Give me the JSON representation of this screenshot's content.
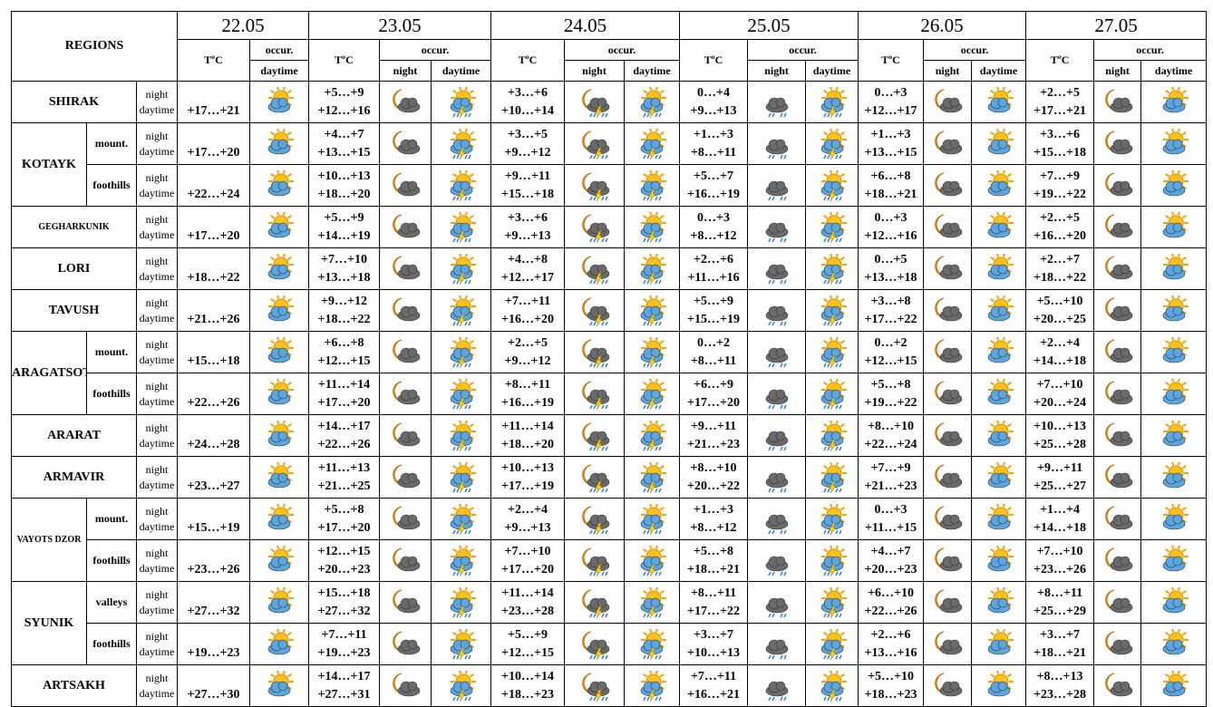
{
  "header": {
    "regions": "REGIONS",
    "dates": [
      "22.05",
      "23.05",
      "24.05",
      "25.05",
      "26.05",
      "27.05"
    ],
    "temp": "TºC",
    "occur": "occur.",
    "night": "night",
    "daytime": "daytime"
  },
  "regions": [
    {
      "name": "SHIRAK",
      "parts": [
        {
          "first": "+17…+21",
          "days": [
            [
              "+5…+9",
              "+12…+16"
            ],
            [
              "+3…+6",
              "+10…+14"
            ],
            [
              "0…+4",
              "+9…+13"
            ],
            [
              "0…+3",
              "+12…+17"
            ],
            [
              "+2…+5",
              "+17…+21"
            ]
          ]
        }
      ]
    },
    {
      "name": "KOTAYK",
      "parts": [
        {
          "name": "mount.",
          "first": "+17…+20",
          "days": [
            [
              "+4…+7",
              "+13…+15"
            ],
            [
              "+3…+5",
              "+9…+12"
            ],
            [
              "+1…+3",
              "+8…+11"
            ],
            [
              "+1…+3",
              "+13…+15"
            ],
            [
              "+3…+6",
              "+15…+18"
            ]
          ]
        },
        {
          "name": "foothills",
          "first": "+22…+24",
          "days": [
            [
              "+10…+13",
              "+18…+20"
            ],
            [
              "+9…+11",
              "+15…+18"
            ],
            [
              "+5…+7",
              "+16…+19"
            ],
            [
              "+6…+8",
              "+18…+21"
            ],
            [
              "+7…+9",
              "+19…+22"
            ]
          ]
        }
      ]
    },
    {
      "name": "GEGHARKUNIK",
      "parts": [
        {
          "first": "+17…+20",
          "days": [
            [
              "+5…+9",
              "+14…+19"
            ],
            [
              "+3…+6",
              "+9…+13"
            ],
            [
              "0…+3",
              "+8…+12"
            ],
            [
              "0…+3",
              "+12…+16"
            ],
            [
              "+2…+5",
              "+16…+20"
            ]
          ]
        }
      ]
    },
    {
      "name": "LORI",
      "parts": [
        {
          "first": "+18…+22",
          "days": [
            [
              "+7…+10",
              "+13…+18"
            ],
            [
              "+4…+8",
              "+12…+17"
            ],
            [
              "+2…+6",
              "+11…+16"
            ],
            [
              "0…+5",
              "+13…+18"
            ],
            [
              "+2…+7",
              "+18…+22"
            ]
          ]
        }
      ]
    },
    {
      "name": "TAVUSH",
      "parts": [
        {
          "first": "+21…+26",
          "days": [
            [
              "+9…+12",
              "+18…+22"
            ],
            [
              "+7…+11",
              "+16…+20"
            ],
            [
              "+5…+9",
              "+15…+19"
            ],
            [
              "+3…+8",
              "+17…+22"
            ],
            [
              "+5…+10",
              "+20…+25"
            ]
          ]
        }
      ]
    },
    {
      "name": "ARAGATSOTN",
      "parts": [
        {
          "name": "mount.",
          "first": "+15…+18",
          "days": [
            [
              "+6…+8",
              "+12…+15"
            ],
            [
              "+2…+5",
              "+9…+12"
            ],
            [
              "0…+2",
              "+8…+11"
            ],
            [
              "0…+2",
              "+12…+15"
            ],
            [
              "+2…+4",
              "+14…+18"
            ]
          ]
        },
        {
          "name": "foothills",
          "first": "+22…+26",
          "days": [
            [
              "+11…+14",
              "+17…+20"
            ],
            [
              "+8…+11",
              "+16…+19"
            ],
            [
              "+6…+9",
              "+17…+20"
            ],
            [
              "+5…+8",
              "+19…+22"
            ],
            [
              "+7…+10",
              "+20…+24"
            ]
          ]
        }
      ]
    },
    {
      "name": "ARARAT",
      "parts": [
        {
          "first": "+24…+28",
          "days": [
            [
              "+14…+17",
              "+22…+26"
            ],
            [
              "+11…+14",
              "+18…+20"
            ],
            [
              "+9…+11",
              "+21…+23"
            ],
            [
              "+8…+10",
              "+22…+24"
            ],
            [
              "+10…+13",
              "+25…+28"
            ]
          ]
        }
      ]
    },
    {
      "name": "ARMAVIR",
      "parts": [
        {
          "first": "+23…+27",
          "days": [
            [
              "+11…+13",
              "+21…+25"
            ],
            [
              "+10…+13",
              "+17…+19"
            ],
            [
              "+8…+10",
              "+20…+22"
            ],
            [
              "+7…+9",
              "+21…+23"
            ],
            [
              "+9…+11",
              "+25…+27"
            ]
          ]
        }
      ]
    },
    {
      "name": "VAYOTS DZOR",
      "parts": [
        {
          "name": "mount.",
          "first": "+15…+19",
          "days": [
            [
              "+5…+8",
              "+17…+20"
            ],
            [
              "+2…+4",
              "+9…+13"
            ],
            [
              "+1…+3",
              "+8…+12"
            ],
            [
              "0…+3",
              "+11…+15"
            ],
            [
              "+1…+4",
              "+14…+18"
            ]
          ]
        },
        {
          "name": "foothills",
          "first": "+23…+26",
          "days": [
            [
              "+12…+15",
              "+20…+23"
            ],
            [
              "+7…+10",
              "+17…+20"
            ],
            [
              "+5…+8",
              "+18…+21"
            ],
            [
              "+4…+7",
              "+20…+23"
            ],
            [
              "+7…+10",
              "+23…+26"
            ]
          ]
        }
      ]
    },
    {
      "name": "SYUNIK",
      "parts": [
        {
          "name": "valleys",
          "first": "+27…+32",
          "days": [
            [
              "+15…+18",
              "+27…+32"
            ],
            [
              "+11…+14",
              "+23…+28"
            ],
            [
              "+8…+11",
              "+17…+22"
            ],
            [
              "+6…+10",
              "+22…+26"
            ],
            [
              "+8…+11",
              "+25…+29"
            ]
          ]
        },
        {
          "name": "foothills",
          "first": "+19…+23",
          "days": [
            [
              "+7…+11",
              "+19…+23"
            ],
            [
              "+5…+9",
              "+12…+15"
            ],
            [
              "+3…+7",
              "+10…+13"
            ],
            [
              "+2…+6",
              "+13…+16"
            ],
            [
              "+3…+7",
              "+18…+21"
            ]
          ]
        }
      ]
    },
    {
      "name": "ARTSAKH",
      "parts": [
        {
          "first": "+27…+30",
          "days": [
            [
              "+14…+17",
              "+27…+31"
            ],
            [
              "+10…+14",
              "+18…+23"
            ],
            [
              "+7…+11",
              "+16…+21"
            ],
            [
              "+5…+10",
              "+18…+23"
            ],
            [
              "+8…+13",
              "+23…+28"
            ]
          ]
        }
      ]
    }
  ]
}
